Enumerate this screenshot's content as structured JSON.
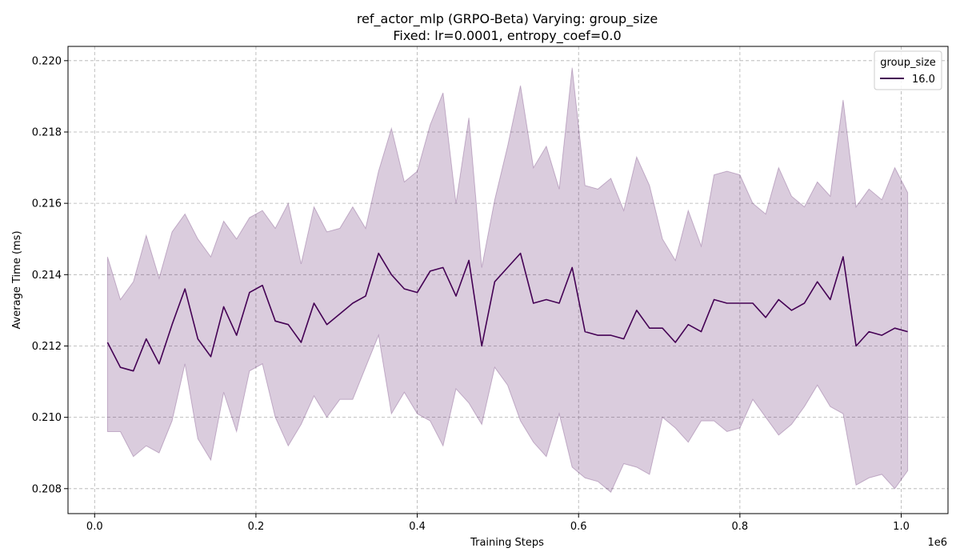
{
  "chart_data": {
    "type": "line",
    "title": "ref_actor_mlp (GRPO-Beta) Varying: group_size",
    "subtitle": "Fixed: lr=0.0001, entropy_coef=0.0",
    "xlabel": "Training Steps",
    "ylabel": "Average Time (ms)",
    "x_offset_label": "1e6",
    "xlim": [
      -0.033,
      1.058
    ],
    "ylim": [
      0.2073,
      0.2204
    ],
    "x_ticks": [
      0.0,
      0.2,
      0.4,
      0.6,
      0.8,
      1.0
    ],
    "x_tick_labels": [
      "0.0",
      "0.2",
      "0.4",
      "0.6",
      "0.8",
      "1.0"
    ],
    "y_ticks": [
      0.208,
      0.21,
      0.212,
      0.214,
      0.216,
      0.218,
      0.22
    ],
    "y_tick_labels": [
      "0.208",
      "0.210",
      "0.212",
      "0.214",
      "0.216",
      "0.218",
      "0.220"
    ],
    "grid": true,
    "legend": {
      "title": "group_size",
      "placement": "top-right"
    },
    "series": [
      {
        "name": "16.0",
        "color": "#440154",
        "band_color": "#440154",
        "x": [
          0.016,
          0.032,
          0.048,
          0.064,
          0.08,
          0.096,
          0.112,
          0.128,
          0.144,
          0.16,
          0.176,
          0.192,
          0.208,
          0.224,
          0.24,
          0.256,
          0.272,
          0.288,
          0.304,
          0.32,
          0.336,
          0.352,
          0.368,
          0.384,
          0.4,
          0.416,
          0.432,
          0.448,
          0.464,
          0.48,
          0.496,
          0.512,
          0.528,
          0.544,
          0.56,
          0.576,
          0.592,
          0.608,
          0.624,
          0.64,
          0.656,
          0.672,
          0.688,
          0.704,
          0.72,
          0.736,
          0.752,
          0.768,
          0.784,
          0.8,
          0.816,
          0.832,
          0.848,
          0.864,
          0.88,
          0.896,
          0.912,
          0.928,
          0.944,
          0.96,
          0.976,
          0.992,
          1.008
        ],
        "values": [
          0.2121,
          0.2114,
          0.2113,
          0.2122,
          0.2115,
          0.2126,
          0.2136,
          0.2122,
          0.2117,
          0.2131,
          0.2123,
          0.2135,
          0.2137,
          0.2127,
          0.2126,
          0.2121,
          0.2132,
          0.2126,
          0.2129,
          0.2132,
          0.2134,
          0.2146,
          0.214,
          0.2136,
          0.2135,
          0.2141,
          0.2142,
          0.2134,
          0.2144,
          0.212,
          0.2138,
          0.2142,
          0.2146,
          0.2132,
          0.2133,
          0.2132,
          0.2142,
          0.2124,
          0.2123,
          0.2123,
          0.2122,
          0.213,
          0.2125,
          0.2125,
          0.2121,
          0.2126,
          0.2124,
          0.2133,
          0.2132,
          0.2132,
          0.2132,
          0.2128,
          0.2133,
          0.213,
          0.2132,
          0.2138,
          0.2133,
          0.2145,
          0.212,
          0.2124,
          0.2123,
          0.2125,
          0.2124
        ],
        "upper": [
          0.2145,
          0.2133,
          0.2138,
          0.2151,
          0.2139,
          0.2152,
          0.2157,
          0.215,
          0.2145,
          0.2155,
          0.215,
          0.2156,
          0.2158,
          0.2153,
          0.216,
          0.2143,
          0.2159,
          0.2152,
          0.2153,
          0.2159,
          0.2153,
          0.2169,
          0.2181,
          0.2166,
          0.2169,
          0.2182,
          0.2191,
          0.216,
          0.2184,
          0.2142,
          0.2161,
          0.2176,
          0.2193,
          0.217,
          0.2176,
          0.2164,
          0.2198,
          0.2165,
          0.2164,
          0.2167,
          0.2158,
          0.2173,
          0.2165,
          0.215,
          0.2144,
          0.2158,
          0.2148,
          0.2168,
          0.2169,
          0.2168,
          0.216,
          0.2157,
          0.217,
          0.2162,
          0.2159,
          0.2166,
          0.2162,
          0.2189,
          0.2159,
          0.2164,
          0.2161,
          0.217,
          0.2163
        ],
        "lower": [
          0.2096,
          0.2096,
          0.2089,
          0.2092,
          0.209,
          0.2099,
          0.2115,
          0.2094,
          0.2088,
          0.2107,
          0.2096,
          0.2113,
          0.2115,
          0.21,
          0.2092,
          0.2098,
          0.2106,
          0.21,
          0.2105,
          0.2105,
          0.2114,
          0.2123,
          0.2101,
          0.2107,
          0.2101,
          0.2099,
          0.2092,
          0.2108,
          0.2104,
          0.2098,
          0.2114,
          0.2109,
          0.2099,
          0.2093,
          0.2089,
          0.2101,
          0.2086,
          0.2083,
          0.2082,
          0.2079,
          0.2087,
          0.2086,
          0.2084,
          0.21,
          0.2097,
          0.2093,
          0.2099,
          0.2099,
          0.2096,
          0.2097,
          0.2105,
          0.21,
          0.2095,
          0.2098,
          0.2103,
          0.2109,
          0.2103,
          0.2101,
          0.2081,
          0.2083,
          0.2084,
          0.208,
          0.2085
        ]
      }
    ]
  }
}
